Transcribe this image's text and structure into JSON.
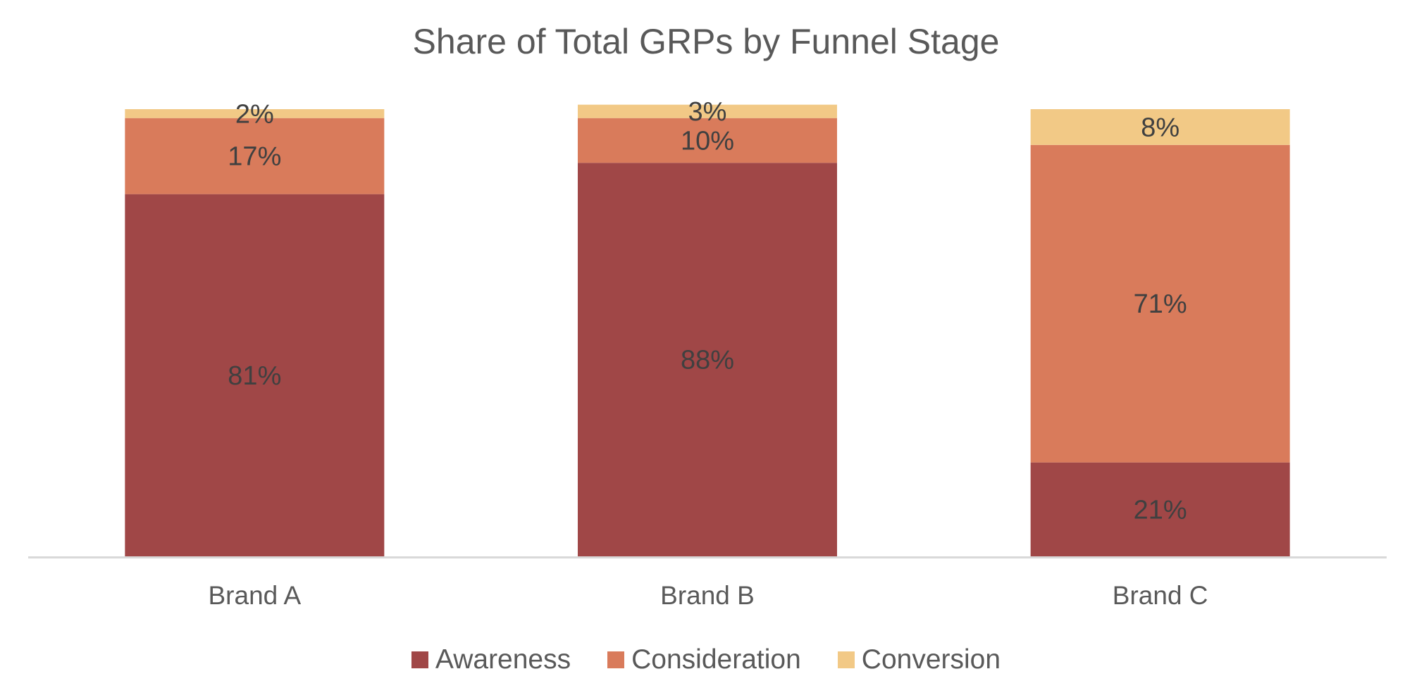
{
  "chart_data": {
    "type": "bar",
    "stacked": true,
    "title": "Share of Total GRPs by Funnel Stage",
    "categories": [
      "Brand A",
      "Brand B",
      "Brand C"
    ],
    "series": [
      {
        "name": "Awareness",
        "color": "#A04747",
        "values": [
          81,
          88,
          21
        ],
        "labels": [
          "81%",
          "88%",
          "21%"
        ]
      },
      {
        "name": "Consideration",
        "color": "#D97B5B",
        "values": [
          17,
          10,
          71
        ],
        "labels": [
          "17%",
          "10%",
          "71%"
        ]
      },
      {
        "name": "Conversion",
        "color": "#F2C986",
        "values": [
          2,
          3,
          8
        ],
        "labels": [
          "2%",
          "3%",
          "8%"
        ]
      }
    ],
    "ylim": [
      0,
      100
    ],
    "grid": false,
    "legend_position": "bottom",
    "xlabel": "",
    "ylabel": ""
  }
}
